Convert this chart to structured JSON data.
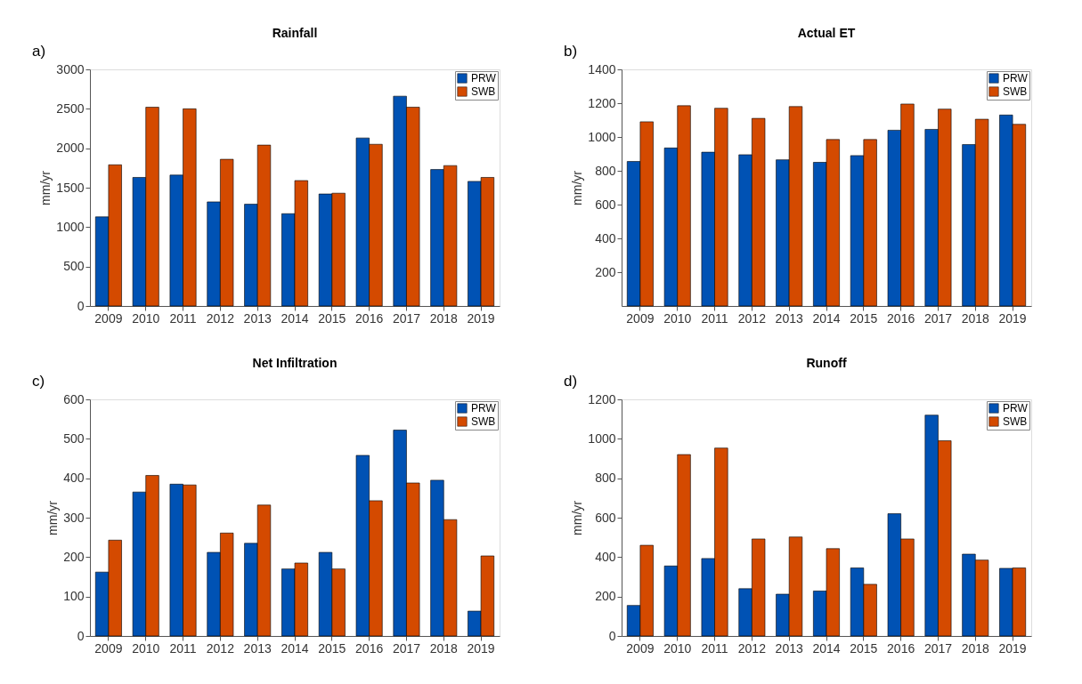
{
  "chart_data": [
    {
      "type": "bar",
      "title": "Rainfall",
      "ylabel": "mm/yr",
      "annotations": [
        "a)"
      ],
      "categories": [
        "2009",
        "2010",
        "2011",
        "2012",
        "2013",
        "2014",
        "2015",
        "2016",
        "2017",
        "2018",
        "2019"
      ],
      "series": [
        {
          "name": "PRW",
          "color": "#0052b4",
          "values": [
            1130,
            1630,
            1660,
            1320,
            1290,
            1170,
            1420,
            2130,
            2660,
            1730,
            1580
          ]
        },
        {
          "name": "SWB",
          "color": "#d44a00",
          "values": [
            1790,
            2520,
            2500,
            1860,
            2040,
            1590,
            1430,
            2050,
            2520,
            1780,
            1630
          ]
        }
      ],
      "ylim": [
        0,
        3000
      ],
      "yticks": [
        0,
        500,
        1000,
        1500,
        2000,
        2500,
        3000
      ],
      "grid": false,
      "legend": "top right"
    },
    {
      "type": "bar",
      "title": "Actual ET",
      "ylabel": "mm/yr",
      "annotations": [
        "b)"
      ],
      "categories": [
        "2009",
        "2010",
        "2011",
        "2012",
        "2013",
        "2014",
        "2015",
        "2016",
        "2017",
        "2018",
        "2019"
      ],
      "series": [
        {
          "name": "PRW",
          "color": "#0052b4",
          "values": [
            855,
            935,
            910,
            895,
            865,
            850,
            890,
            1040,
            1045,
            955,
            1130
          ]
        },
        {
          "name": "SWB",
          "color": "#d44a00",
          "values": [
            1090,
            1185,
            1170,
            1110,
            1180,
            985,
            985,
            1195,
            1165,
            1105,
            1075
          ]
        }
      ],
      "ylim": [
        0,
        1400
      ],
      "yticks": [
        200,
        400,
        600,
        800,
        1000,
        1200,
        1400
      ],
      "grid": false,
      "legend": "top right"
    },
    {
      "type": "bar",
      "title": "Net Infiltration",
      "ylabel": "mm/yr",
      "annotations": [
        "c)"
      ],
      "categories": [
        "2009",
        "2010",
        "2011",
        "2012",
        "2013",
        "2014",
        "2015",
        "2016",
        "2017",
        "2018",
        "2019"
      ],
      "series": [
        {
          "name": "PRW",
          "color": "#0052b4",
          "values": [
            162,
            365,
            385,
            212,
            235,
            170,
            212,
            458,
            522,
            395,
            63
          ]
        },
        {
          "name": "SWB",
          "color": "#d44a00",
          "values": [
            243,
            407,
            383,
            261,
            332,
            185,
            170,
            343,
            388,
            295,
            203
          ]
        }
      ],
      "ylim": [
        0,
        600
      ],
      "yticks": [
        0,
        100,
        200,
        300,
        400,
        500,
        600
      ],
      "grid": false,
      "legend": "top right"
    },
    {
      "type": "bar",
      "title": "Runoff",
      "ylabel": "mm/yr",
      "annotations": [
        "d)"
      ],
      "categories": [
        "2009",
        "2010",
        "2011",
        "2012",
        "2013",
        "2014",
        "2015",
        "2016",
        "2017",
        "2018",
        "2019"
      ],
      "series": [
        {
          "name": "PRW",
          "color": "#0052b4",
          "values": [
            155,
            355,
            393,
            240,
            212,
            228,
            345,
            620,
            1120,
            415,
            343
          ]
        },
        {
          "name": "SWB",
          "color": "#d44a00",
          "values": [
            460,
            920,
            953,
            492,
            502,
            443,
            262,
            492,
            990,
            385,
            345
          ]
        }
      ],
      "ylim": [
        0,
        1200
      ],
      "yticks": [
        0,
        200,
        400,
        600,
        800,
        1000,
        1200
      ],
      "grid": false,
      "legend": "top right"
    }
  ]
}
